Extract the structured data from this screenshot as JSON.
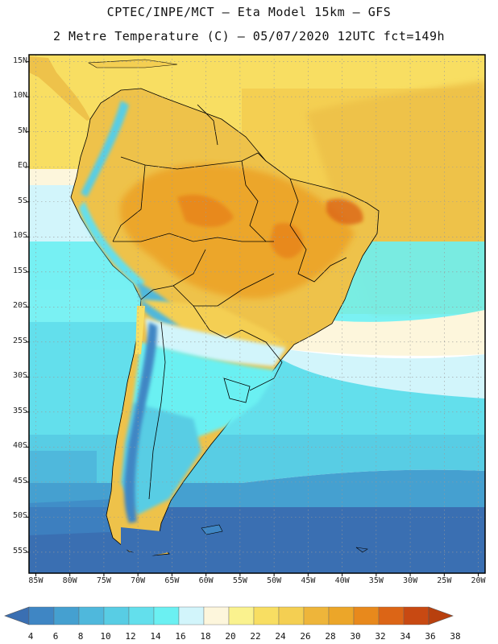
{
  "title_line1": "CPTEC/INPE/MCT –  Eta Model 15km – GFS",
  "title_line2": "2 Metre Temperature (C) – 05/07/2020 12UTC fct=149h",
  "map": {
    "region": "South America",
    "lon_range": [
      -86,
      -19
    ],
    "lat_range": [
      16,
      -58
    ],
    "lat_labels": [
      "15N",
      "10N",
      "5N",
      "EQ",
      "5S",
      "10S",
      "15S",
      "20S",
      "25S",
      "30S",
      "35S",
      "40S",
      "45S",
      "50S",
      "55S"
    ],
    "lat_values": [
      15,
      10,
      5,
      0,
      -5,
      -10,
      -15,
      -20,
      -25,
      -30,
      -35,
      -40,
      -45,
      -50,
      -55
    ],
    "lon_labels": [
      "85W",
      "80W",
      "75W",
      "70W",
      "65W",
      "60W",
      "55W",
      "50W",
      "45W",
      "40W",
      "35W",
      "30W",
      "25W",
      "20W"
    ],
    "lon_values": [
      -85,
      -80,
      -75,
      -70,
      -65,
      -60,
      -55,
      -50,
      -45,
      -40,
      -35,
      -30,
      -25,
      -20
    ]
  },
  "colorbar": {
    "labels": [
      "4",
      "6",
      "8",
      "10",
      "12",
      "14",
      "16",
      "18",
      "20",
      "22",
      "24",
      "26",
      "28",
      "30",
      "32",
      "34",
      "36",
      "38"
    ],
    "colors": [
      "#3a6fb2",
      "#3f86c4",
      "#45a0d0",
      "#4fb8dc",
      "#58cde4",
      "#63dfec",
      "#6bf0f2",
      "#d2f5fb",
      "#fdf6dc",
      "#faf28e",
      "#f8de62",
      "#f4cf52",
      "#eeb53a",
      "#eca629",
      "#e8891c",
      "#dc6516",
      "#c84912",
      "#b8400e"
    ]
  }
}
